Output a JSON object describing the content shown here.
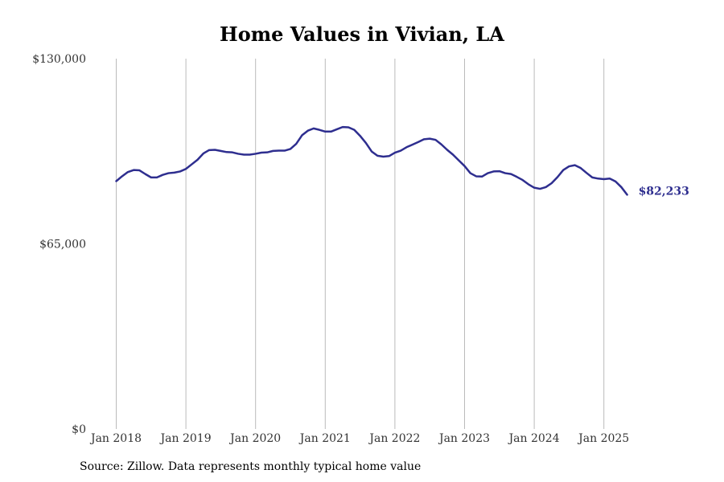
{
  "chart_data": {
    "type": "line",
    "title": "Home Values in Vivian, LA",
    "ylim": [
      0,
      130000
    ],
    "y_ticks": [
      {
        "value": 0,
        "label": "$0"
      },
      {
        "value": 65000,
        "label": "$65,000"
      },
      {
        "value": 130000,
        "label": "$130,000"
      }
    ],
    "x_ticks": [
      {
        "value": "2018-01",
        "label": "Jan 2018"
      },
      {
        "value": "2019-01",
        "label": "Jan 2019"
      },
      {
        "value": "2020-01",
        "label": "Jan 2020"
      },
      {
        "value": "2021-01",
        "label": "Jan 2021"
      },
      {
        "value": "2022-01",
        "label": "Jan 2022"
      },
      {
        "value": "2023-01",
        "label": "Jan 2023"
      },
      {
        "value": "2024-01",
        "label": "Jan 2024"
      },
      {
        "value": "2025-01",
        "label": "Jan 2025"
      }
    ],
    "grid": "vertical",
    "line_color": "#2e2e8f",
    "end_label": "$82,233",
    "series": [
      {
        "x": [
          "2018-01",
          "2018-02",
          "2018-03",
          "2018-04",
          "2018-05",
          "2018-06",
          "2018-07",
          "2018-08",
          "2018-09",
          "2018-10",
          "2018-11",
          "2018-12",
          "2019-01",
          "2019-02",
          "2019-03",
          "2019-04",
          "2019-05",
          "2019-06",
          "2019-07",
          "2019-08",
          "2019-09",
          "2019-10",
          "2019-11",
          "2019-12",
          "2020-01",
          "2020-02",
          "2020-03",
          "2020-04",
          "2020-05",
          "2020-06",
          "2020-07",
          "2020-08",
          "2020-09",
          "2020-10",
          "2020-11",
          "2020-12",
          "2021-01",
          "2021-02",
          "2021-03",
          "2021-04",
          "2021-05",
          "2021-06",
          "2021-07",
          "2021-08",
          "2021-09",
          "2021-10",
          "2021-11",
          "2021-12",
          "2022-01",
          "2022-02",
          "2022-03",
          "2022-04",
          "2022-05",
          "2022-06",
          "2022-07",
          "2022-08",
          "2022-09",
          "2022-10",
          "2022-11",
          "2022-12",
          "2023-01",
          "2023-02",
          "2023-03",
          "2023-04",
          "2023-05",
          "2023-06",
          "2023-07",
          "2023-08",
          "2023-09",
          "2023-10",
          "2023-11",
          "2023-12",
          "2024-01",
          "2024-02",
          "2024-03",
          "2024-04",
          "2024-05",
          "2024-06",
          "2024-07",
          "2024-08",
          "2024-09",
          "2024-10",
          "2024-11",
          "2024-12",
          "2025-01",
          "2025-02",
          "2025-03",
          "2025-04",
          "2025-05"
        ],
        "values": [
          87000,
          88700,
          90200,
          90900,
          90800,
          89500,
          88300,
          88300,
          89200,
          89800,
          90000,
          90400,
          91300,
          92900,
          94500,
          96700,
          97900,
          98000,
          97600,
          97200,
          97100,
          96600,
          96300,
          96300,
          96600,
          97000,
          97100,
          97600,
          97700,
          97700,
          98300,
          100100,
          103100,
          104700,
          105500,
          105000,
          104400,
          104400,
          105200,
          106000,
          105900,
          105000,
          102900,
          100400,
          97400,
          95900,
          95600,
          95800,
          97000,
          97700,
          98900,
          99800,
          100700,
          101700,
          101900,
          101500,
          99900,
          98000,
          96300,
          94300,
          92300,
          89800,
          88700,
          88600,
          89800,
          90400,
          90500,
          89800,
          89500,
          88500,
          87400,
          85900,
          84700,
          84300,
          84900,
          86300,
          88400,
          90900,
          92200,
          92600,
          91600,
          89900,
          88300,
          87900,
          87700,
          87900,
          86900,
          84900,
          82233
        ]
      }
    ]
  },
  "footer": {
    "source": "Source: Zillow. Data represents monthly typical home value"
  }
}
